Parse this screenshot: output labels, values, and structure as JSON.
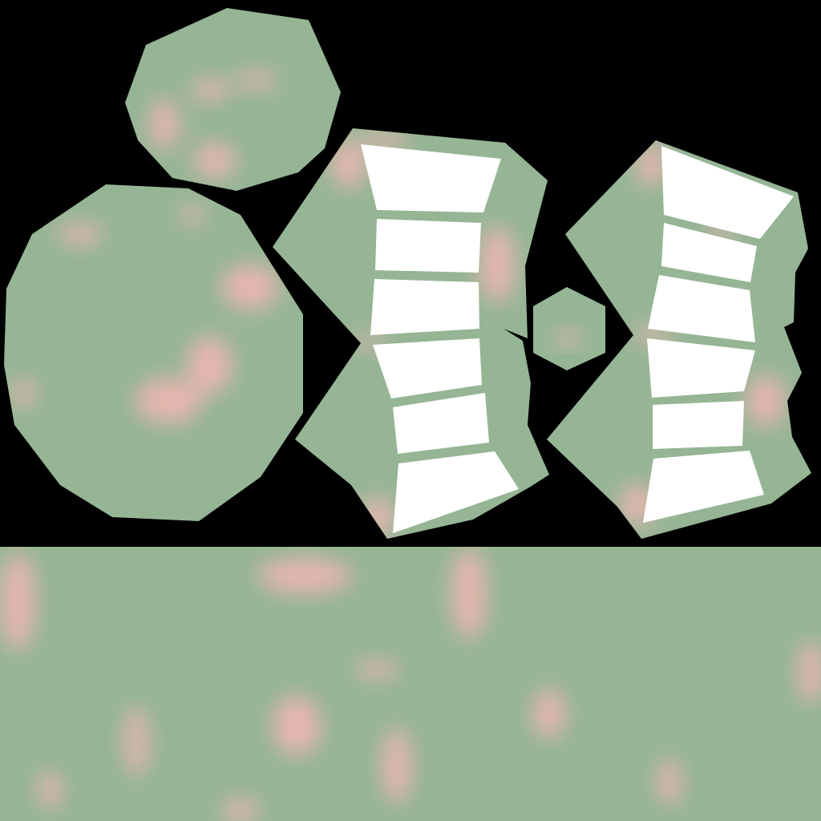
{
  "canvas": {
    "background": "#000000"
  },
  "palette": {
    "base_green": "#95b595",
    "pink_blotch": "#e8b6b0",
    "panel_white": "#ffffff"
  },
  "islands": [
    {
      "name": "small-round-island",
      "shape": "polygon",
      "fill": "base_green"
    },
    {
      "name": "large-round-island",
      "shape": "polygon",
      "fill": "base_green"
    },
    {
      "name": "left-ribbed-island",
      "shape": "polygon",
      "fill": "base_green",
      "panels": 6
    },
    {
      "name": "tiny-hexagon-island",
      "shape": "hexagon",
      "fill": "base_green"
    },
    {
      "name": "right-ribbed-island",
      "shape": "polygon",
      "fill": "base_green",
      "panels": 6
    },
    {
      "name": "bottom-strip-island",
      "shape": "rectangle",
      "fill": "base_green"
    }
  ]
}
